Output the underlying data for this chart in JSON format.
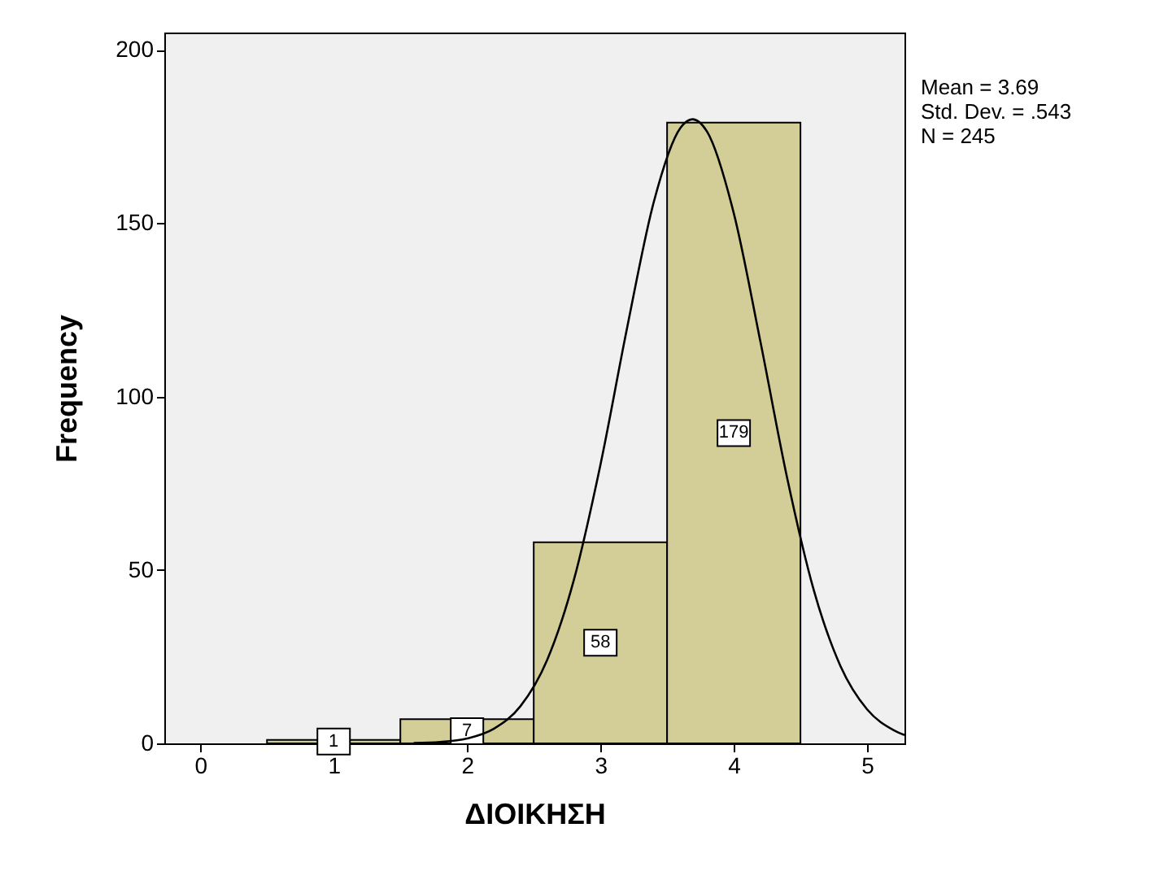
{
  "chart_data": {
    "type": "histogram",
    "xlabel": "ΔΙΟΙΚΗΣΗ",
    "ylabel": "Frequency",
    "bins": [
      0.5,
      1.5,
      2.5,
      3.5,
      4.5
    ],
    "values": [
      1,
      7,
      58,
      179
    ],
    "color": "#d3ce97",
    "value_labels": [
      "1",
      "7",
      "58",
      "179"
    ],
    "series": [
      {
        "type": "line",
        "color": "#000000",
        "x": [
          1.6,
          1.8,
          2.0,
          2.2,
          2.4,
          2.6,
          2.8,
          3.0,
          3.2,
          3.4,
          3.6,
          3.69,
          3.8,
          4.0,
          4.2,
          4.4,
          4.6,
          4.8,
          5.0,
          5.2,
          5.28
        ],
        "values": [
          0.1,
          0.4,
          1.4,
          4.2,
          10.7,
          24.0,
          47.0,
          80.3,
          119.8,
          156.1,
          177.5,
          180,
          176.4,
          152.9,
          115.8,
          76.6,
          44.2,
          22.3,
          9.8,
          3.8,
          2.4
        ]
      }
    ],
    "annotations": [
      "Mean = 3.69",
      "Std. Dev. = .543",
      "N = 245"
    ],
    "xlim": [
      -0.27,
      5.28
    ],
    "ylim": [
      0,
      205
    ],
    "xticks": [
      0,
      1,
      2,
      3,
      4,
      5
    ],
    "yticks": [
      0,
      50,
      100,
      150,
      200
    ],
    "grid": false
  }
}
